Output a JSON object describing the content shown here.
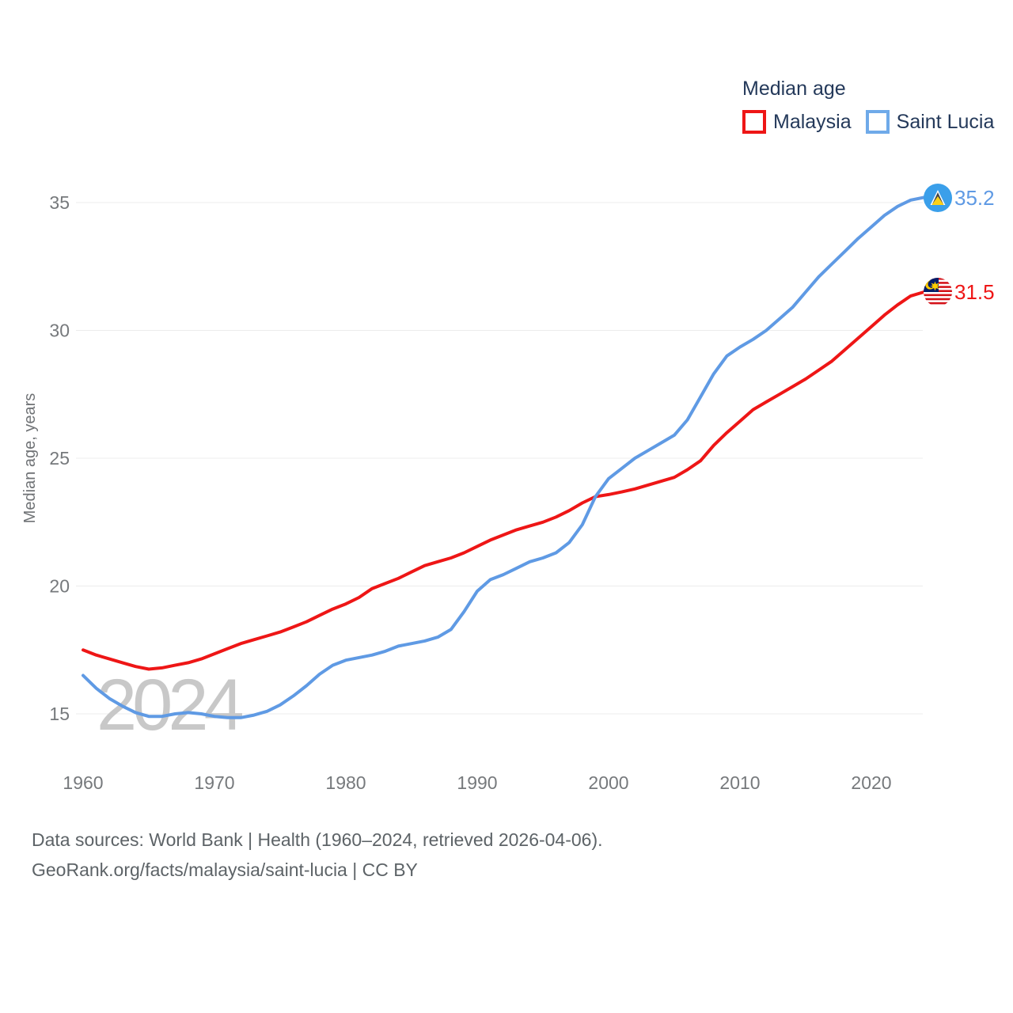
{
  "legend": {
    "title": "Median age",
    "items": [
      {
        "label": "Malaysia",
        "color": "#ee1616"
      },
      {
        "label": "Saint Lucia",
        "color": "#6faae9"
      }
    ]
  },
  "end_labels": [
    {
      "series": "Saint Lucia",
      "value": "35.2",
      "color": "#5f9ae4",
      "flag": "saint-lucia-flag"
    },
    {
      "series": "Malaysia",
      "value": "31.5",
      "color": "#ee1616",
      "flag": "malaysia-flag"
    }
  ],
  "watermark": "2024",
  "y_axis": {
    "title": "Median age, years",
    "ticks": [
      15,
      20,
      25,
      30,
      35
    ]
  },
  "x_axis": {
    "ticks": [
      1960,
      1970,
      1980,
      1990,
      2000,
      2010,
      2020
    ]
  },
  "footer": {
    "line1": "Data sources: World Bank | Health (1960–2024, retrieved 2026-04-06).",
    "line2": "GeoRank.org/facts/malaysia/saint-lucia | CC BY"
  },
  "chart_data": {
    "type": "line",
    "title": "Median age",
    "ylabel": "Median age, years",
    "xlabel": "",
    "xlim": [
      1960,
      2024
    ],
    "ylim": [
      13.8,
      36.3
    ],
    "grid": "horizontal",
    "legend_position": "top-right",
    "x": [
      1960,
      1961,
      1962,
      1963,
      1964,
      1965,
      1966,
      1967,
      1968,
      1969,
      1970,
      1971,
      1972,
      1973,
      1974,
      1975,
      1976,
      1977,
      1978,
      1979,
      1980,
      1981,
      1982,
      1983,
      1984,
      1985,
      1986,
      1987,
      1988,
      1989,
      1990,
      1991,
      1992,
      1993,
      1994,
      1995,
      1996,
      1997,
      1998,
      1999,
      2000,
      2001,
      2002,
      2003,
      2004,
      2005,
      2006,
      2007,
      2008,
      2009,
      2010,
      2011,
      2012,
      2013,
      2014,
      2015,
      2016,
      2017,
      2018,
      2019,
      2020,
      2021,
      2022,
      2023,
      2024
    ],
    "series": [
      {
        "name": "Malaysia",
        "color": "#ee1616",
        "end_value": 31.5,
        "values": [
          17.5,
          17.3,
          17.15,
          17.0,
          16.85,
          16.75,
          16.8,
          16.9,
          17.0,
          17.15,
          17.35,
          17.55,
          17.75,
          17.9,
          18.05,
          18.2,
          18.4,
          18.6,
          18.85,
          19.1,
          19.3,
          19.55,
          19.9,
          20.1,
          20.3,
          20.55,
          20.8,
          20.95,
          21.1,
          21.3,
          21.55,
          21.8,
          22.0,
          22.2,
          22.35,
          22.5,
          22.7,
          22.95,
          23.25,
          23.5,
          23.58,
          23.68,
          23.8,
          23.95,
          24.1,
          24.25,
          24.55,
          24.9,
          25.5,
          26.0,
          26.45,
          26.9,
          27.2,
          27.5,
          27.8,
          28.1,
          28.45,
          28.8,
          29.25,
          29.7,
          30.15,
          30.6,
          31.0,
          31.35,
          31.5
        ]
      },
      {
        "name": "Saint Lucia",
        "color": "#5f9ae4",
        "end_value": 35.2,
        "values": [
          16.5,
          16.0,
          15.6,
          15.3,
          15.05,
          14.9,
          14.9,
          15.0,
          15.05,
          15.0,
          14.9,
          14.85,
          14.85,
          14.95,
          15.1,
          15.35,
          15.7,
          16.1,
          16.55,
          16.9,
          17.1,
          17.2,
          17.3,
          17.45,
          17.65,
          17.75,
          17.85,
          18.0,
          18.3,
          19.0,
          19.8,
          20.25,
          20.45,
          20.7,
          20.95,
          21.1,
          21.3,
          21.7,
          22.4,
          23.5,
          24.2,
          24.6,
          25.0,
          25.3,
          25.6,
          25.9,
          26.5,
          27.4,
          28.3,
          29.0,
          29.35,
          29.65,
          30.0,
          30.45,
          30.9,
          31.5,
          32.1,
          32.6,
          33.1,
          33.6,
          34.05,
          34.5,
          34.85,
          35.1,
          35.2
        ]
      }
    ]
  },
  "colors": {
    "grid": "#ececec",
    "tick_label": "#76797c",
    "axis_title": "#6f7275",
    "watermark": "#c8c8c8",
    "legend_text": "#24395a",
    "footer_text": "#5d6367"
  }
}
